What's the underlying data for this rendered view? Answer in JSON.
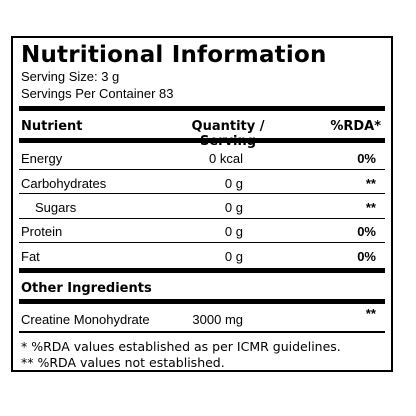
{
  "panel": {
    "title": "Nutritional Information",
    "serving_size": "Serving Size: 3 g",
    "servings_per_container": "Servings Per Container 83"
  },
  "table": {
    "headers": {
      "nutrient": "Nutrient",
      "quantity": "Quantity / Serving",
      "rda": "%RDA*"
    },
    "rows": [
      {
        "name": "Energy",
        "quantity": "0 kcal",
        "rda": "0%"
      },
      {
        "name": "Carbohydrates",
        "quantity": "0 g",
        "rda": "**"
      },
      {
        "name": "Sugars",
        "quantity": "0 g",
        "rda": "**"
      },
      {
        "name": "Protein",
        "quantity": "0 g",
        "rda": "0%"
      },
      {
        "name": "Fat",
        "quantity": "0 g",
        "rda": "0%"
      }
    ]
  },
  "ingredients": {
    "heading": "Other Ingredients",
    "items": [
      {
        "name": "Creatine Monohydrate",
        "quantity": "3000 mg",
        "rda": "**"
      }
    ]
  },
  "footnotes": {
    "note1": "* %RDA values established as per ICMR guidelines.",
    "note2": "** %RDA values not established."
  }
}
